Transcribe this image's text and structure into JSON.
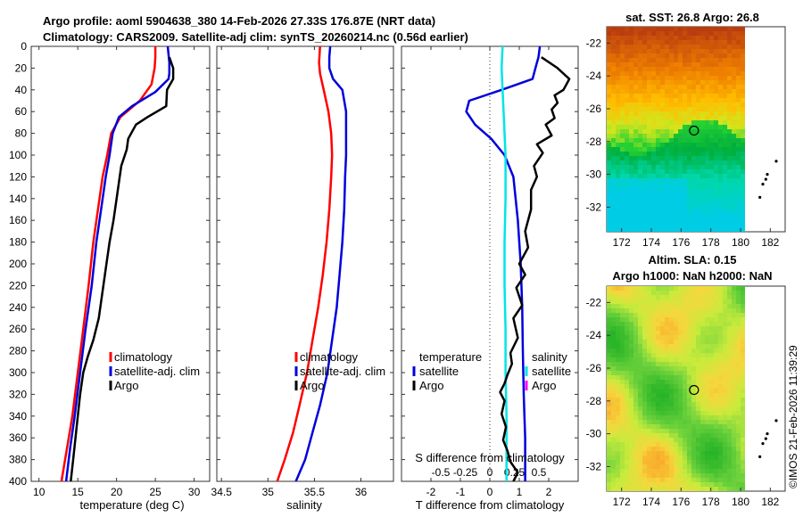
{
  "header": {
    "title_line1": "Argo profile: aoml 5904638_380 14-Feb-2026 27.33S 176.87E (NRT data)",
    "title_line2": "Climatology: CARS2009. Satellite-adj clim: synTS_20260214.nc (0.56d earlier)",
    "imos_stamp": "©IMOS 21-Feb-2026 11:39:29"
  },
  "colors": {
    "climatology": "#ff0000",
    "satellite": "#0000dd",
    "argo": "#000000",
    "sat_salinity": "#00e5e5",
    "argo_salinity": "#ff00ff"
  },
  "chart_data": [
    {
      "id": "temperature",
      "type": "line",
      "xlabel": "temperature (deg C)",
      "ylabel": "depth",
      "xlim": [
        9,
        32
      ],
      "ylim": [
        0,
        400
      ],
      "xticks": [
        10,
        15,
        20,
        25,
        30
      ],
      "yticks": [
        0,
        20,
        40,
        60,
        80,
        100,
        120,
        140,
        160,
        180,
        200,
        220,
        240,
        260,
        280,
        300,
        320,
        340,
        360,
        380,
        400
      ],
      "legend": {
        "position": "right",
        "entries": [
          "climatology",
          "satellite-adj. clim",
          "Argo"
        ]
      },
      "series": [
        {
          "name": "climatology",
          "color": "#ff0000",
          "points": [
            [
              25,
              0
            ],
            [
              25,
              10
            ],
            [
              24.9,
              20
            ],
            [
              24.5,
              35
            ],
            [
              23,
              50
            ],
            [
              20.5,
              65
            ],
            [
              19.3,
              80
            ],
            [
              18.8,
              100
            ],
            [
              18.2,
              120
            ],
            [
              17.6,
              150
            ],
            [
              17.0,
              180
            ],
            [
              16.4,
              220
            ],
            [
              15.7,
              260
            ],
            [
              15.0,
              300
            ],
            [
              14.3,
              340
            ],
            [
              13.6,
              370
            ],
            [
              12.9,
              400
            ]
          ]
        },
        {
          "name": "satellite-adj. clim",
          "color": "#0000dd",
          "points": [
            [
              26.6,
              0
            ],
            [
              26.8,
              15
            ],
            [
              26.8,
              25
            ],
            [
              26.7,
              30
            ],
            [
              25,
              42
            ],
            [
              22,
              55
            ],
            [
              20.3,
              65
            ],
            [
              19.5,
              80
            ],
            [
              19.1,
              100
            ],
            [
              18.6,
              120
            ],
            [
              18.0,
              150
            ],
            [
              17.4,
              180
            ],
            [
              16.8,
              220
            ],
            [
              16.0,
              260
            ],
            [
              15.3,
              300
            ],
            [
              14.6,
              340
            ],
            [
              14.0,
              370
            ],
            [
              13.5,
              400
            ]
          ]
        },
        {
          "name": "Argo",
          "color": "#000000",
          "points": [
            [
              26.8,
              10
            ],
            [
              27.3,
              20
            ],
            [
              27.3,
              30
            ],
            [
              26.5,
              40
            ],
            [
              26.4,
              55
            ],
            [
              24,
              65
            ],
            [
              22.5,
              72
            ],
            [
              21.5,
              85
            ],
            [
              21.3,
              95
            ],
            [
              20.6,
              110
            ],
            [
              20.3,
              125
            ],
            [
              20.0,
              140
            ],
            [
              19.6,
              160
            ],
            [
              19.1,
              180
            ],
            [
              18.7,
              200
            ],
            [
              18.2,
              225
            ],
            [
              17.7,
              250
            ],
            [
              17.0,
              270
            ],
            [
              16.3,
              285
            ],
            [
              15.7,
              300
            ],
            [
              15.3,
              320
            ],
            [
              15.0,
              340
            ],
            [
              14.7,
              360
            ],
            [
              14.4,
              380
            ],
            [
              14.1,
              400
            ]
          ]
        }
      ]
    },
    {
      "id": "salinity",
      "type": "line",
      "xlabel": "salinity",
      "ylabel": "depth",
      "xlim": [
        34.45,
        36.35
      ],
      "ylim": [
        0,
        400
      ],
      "xticks": [
        34.5,
        35,
        35.5,
        36
      ],
      "legend": {
        "position": "right",
        "entries": [
          "climatology",
          "satellite-adj. clim",
          "Argo"
        ]
      },
      "series": [
        {
          "name": "climatology",
          "color": "#ff0000",
          "points": [
            [
              35.56,
              0
            ],
            [
              35.55,
              15
            ],
            [
              35.56,
              25
            ],
            [
              35.6,
              40
            ],
            [
              35.65,
              60
            ],
            [
              35.68,
              80
            ],
            [
              35.69,
              100
            ],
            [
              35.68,
              120
            ],
            [
              35.66,
              150
            ],
            [
              35.63,
              180
            ],
            [
              35.59,
              210
            ],
            [
              35.54,
              240
            ],
            [
              35.48,
              270
            ],
            [
              35.42,
              300
            ],
            [
              35.34,
              330
            ],
            [
              35.27,
              355
            ],
            [
              35.18,
              380
            ],
            [
              35.1,
              400
            ]
          ]
        },
        {
          "name": "satellite-adj. clim",
          "color": "#0000dd",
          "points": [
            [
              35.67,
              0
            ],
            [
              35.66,
              10
            ],
            [
              35.66,
              20
            ],
            [
              35.7,
              30
            ],
            [
              35.8,
              40
            ],
            [
              35.84,
              60
            ],
            [
              35.84,
              80
            ],
            [
              35.84,
              100
            ],
            [
              35.83,
              120
            ],
            [
              35.82,
              150
            ],
            [
              35.8,
              180
            ],
            [
              35.77,
              210
            ],
            [
              35.74,
              240
            ],
            [
              35.69,
              270
            ],
            [
              35.64,
              300
            ],
            [
              35.56,
              330
            ],
            [
              35.48,
              355
            ],
            [
              35.4,
              380
            ],
            [
              35.3,
              400
            ]
          ]
        }
      ]
    },
    {
      "id": "difference",
      "type": "line",
      "xlabel": "T difference from climatology",
      "x2label": "S difference from climatology",
      "ylabel": "depth",
      "xlim": [
        -3.0,
        3.0
      ],
      "x2lim": [
        -0.9,
        0.9
      ],
      "ylim": [
        0,
        400
      ],
      "xticks": [
        -2,
        -1,
        0,
        1,
        2
      ],
      "x2ticks": [
        -0.5,
        -0.25,
        0,
        0.25,
        0.5
      ],
      "x2ticklabels": [
        "-0.5",
        "-0.25",
        "0",
        "0.25",
        "0.5"
      ],
      "legend_left": {
        "title": "temperature",
        "entries": [
          "satellite",
          "Argo"
        ]
      },
      "legend_right": {
        "title": "salinity",
        "entries": [
          "satellite",
          "Argo"
        ]
      },
      "series": [
        {
          "name": "T satellite",
          "color": "#0000dd",
          "points": [
            [
              1.7,
              0
            ],
            [
              1.65,
              10
            ],
            [
              1.55,
              20
            ],
            [
              1.45,
              30
            ],
            [
              0.4,
              40
            ],
            [
              -0.7,
              50
            ],
            [
              -0.8,
              60
            ],
            [
              -0.5,
              72
            ],
            [
              0.05,
              85
            ],
            [
              0.5,
              100
            ],
            [
              0.8,
              120
            ],
            [
              0.95,
              160
            ],
            [
              1.05,
              200
            ],
            [
              1.1,
              240
            ],
            [
              1.12,
              280
            ],
            [
              1.15,
              320
            ],
            [
              1.2,
              360
            ],
            [
              1.2,
              400
            ]
          ]
        },
        {
          "name": "S satellite",
          "color": "#00e5e5",
          "points": [
            [
              0.13,
              0
            ],
            [
              0.12,
              20
            ],
            [
              0.13,
              40
            ],
            [
              0.14,
              60
            ],
            [
              0.15,
              80
            ],
            [
              0.16,
              100
            ],
            [
              0.16,
              140
            ],
            [
              0.15,
              180
            ],
            [
              0.15,
              220
            ],
            [
              0.16,
              260
            ],
            [
              0.16,
              300
            ],
            [
              0.17,
              340
            ],
            [
              0.17,
              400
            ]
          ]
        },
        {
          "name": "T Argo",
          "color": "#000000",
          "points": [
            [
              1.75,
              10
            ],
            [
              2.3,
              20
            ],
            [
              2.7,
              30
            ],
            [
              2.5,
              40
            ],
            [
              2.2,
              45
            ],
            [
              2.3,
              52
            ],
            [
              2.1,
              58
            ],
            [
              2.2,
              66
            ],
            [
              1.9,
              72
            ],
            [
              2.1,
              82
            ],
            [
              1.6,
              90
            ],
            [
              1.8,
              98
            ],
            [
              1.5,
              110
            ],
            [
              1.6,
              120
            ],
            [
              1.4,
              132
            ],
            [
              1.4,
              150
            ],
            [
              1.2,
              170
            ],
            [
              1.3,
              185
            ],
            [
              1.0,
              200
            ],
            [
              1.2,
              210
            ],
            [
              0.9,
              222
            ],
            [
              1.1,
              238
            ],
            [
              0.8,
              250
            ],
            [
              0.95,
              268
            ],
            [
              0.7,
              282
            ],
            [
              0.75,
              292
            ],
            [
              0.6,
              302
            ],
            [
              0.5,
              310
            ],
            [
              0.35,
              318
            ],
            [
              0.5,
              326
            ],
            [
              0.4,
              338
            ],
            [
              0.55,
              350
            ],
            [
              0.45,
              362
            ],
            [
              0.6,
              372
            ],
            [
              0.7,
              382
            ],
            [
              0.95,
              392
            ],
            [
              0.8,
              400
            ]
          ]
        }
      ]
    },
    {
      "id": "sst_map",
      "type": "heatmap",
      "title": "sat. SST: 26.8 Argo: 26.8",
      "xlim": [
        171,
        183
      ],
      "ylim": [
        -33.5,
        -21
      ],
      "xticks": [
        172,
        174,
        176,
        178,
        180,
        182
      ],
      "yticks": [
        -22,
        -24,
        -26,
        -28,
        -30,
        -32
      ],
      "marker": {
        "lon": 176.87,
        "lat": -27.33
      },
      "islands": [
        [
          182.4,
          -29.2
        ],
        [
          181.8,
          -30.0
        ],
        [
          181.7,
          -30.3
        ],
        [
          181.5,
          -30.6
        ],
        [
          181.3,
          -31.4
        ]
      ]
    },
    {
      "id": "sla_map",
      "type": "heatmap",
      "title_line1": "Altim. SLA: 0.15",
      "title_line2": "Argo h1000: NaN h2000: NaN",
      "xlim": [
        171,
        183
      ],
      "ylim": [
        -33.5,
        -21
      ],
      "xticks": [
        172,
        174,
        176,
        178,
        180,
        182
      ],
      "yticks": [
        -22,
        -24,
        -26,
        -28,
        -30,
        -32
      ],
      "marker": {
        "lon": 176.87,
        "lat": -27.33
      },
      "islands": [
        [
          182.4,
          -29.2
        ],
        [
          181.8,
          -30.0
        ],
        [
          181.7,
          -30.3
        ],
        [
          181.5,
          -30.6
        ],
        [
          181.3,
          -31.4
        ]
      ]
    }
  ]
}
